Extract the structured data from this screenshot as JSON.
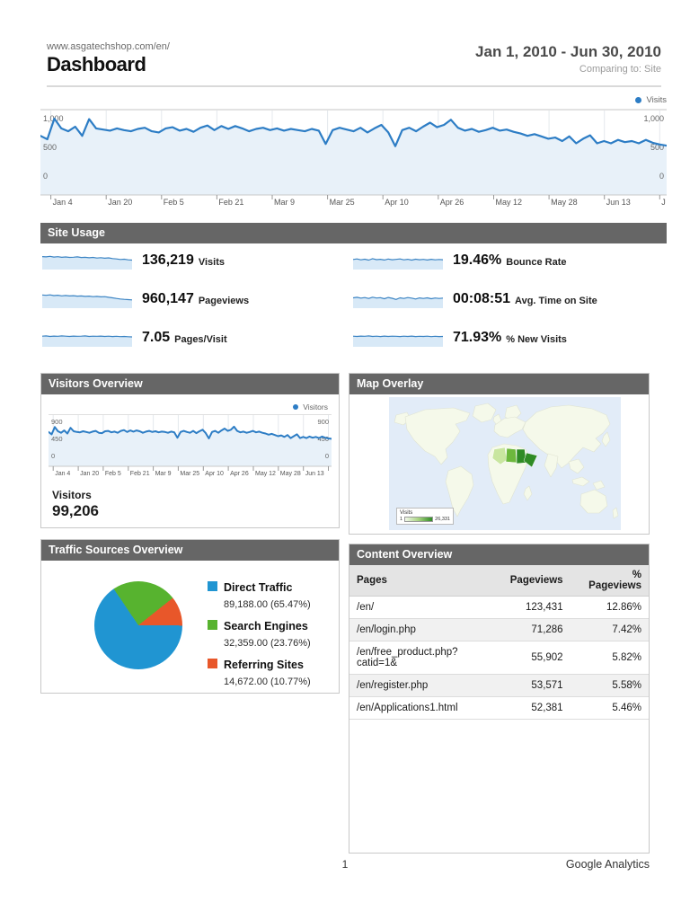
{
  "header": {
    "site_url": "www.asgatechshop.com/en/",
    "title": "Dashboard",
    "date_range": "Jan 1, 2010 - Jun 30, 2010",
    "comparing": "Comparing to: Site"
  },
  "footer": {
    "page_number": "1",
    "brand": "Google Analytics"
  },
  "charts": {
    "main": {
      "type": "line",
      "legend": "Visits",
      "y_ticks": [
        "1,000",
        "500",
        "0"
      ],
      "y_max": 1000,
      "x_labels": [
        "Jan 4",
        "Jan 20",
        "Feb 5",
        "Feb 21",
        "Mar 9",
        "Mar 25",
        "Apr 10",
        "Apr 26",
        "May 12",
        "May 28",
        "Jun 13",
        "J"
      ],
      "values": [
        700,
        640,
        1000,
        830,
        780,
        860,
        700,
        990,
        830,
        810,
        790,
        830,
        800,
        780,
        820,
        840,
        780,
        760,
        830,
        850,
        790,
        820,
        770,
        840,
        880,
        800,
        870,
        820,
        870,
        830,
        780,
        820,
        840,
        800,
        830,
        790,
        820,
        800,
        780,
        820,
        790,
        560,
        800,
        840,
        810,
        780,
        840,
        760,
        830,
        890,
        760,
        520,
        800,
        840,
        780,
        860,
        930,
        850,
        890,
        980,
        840,
        790,
        820,
        770,
        800,
        840,
        790,
        810,
        770,
        740,
        700,
        730,
        690,
        650,
        670,
        610,
        690,
        570,
        650,
        710,
        570,
        610,
        570,
        630,
        590,
        610,
        570,
        630,
        580,
        550,
        530
      ]
    },
    "visitors": {
      "type": "line",
      "legend": "Visitors",
      "y_ticks": [
        "900",
        "450",
        "0"
      ],
      "y_max": 900,
      "x_labels": [
        "Jan 4",
        "Jan 20",
        "Feb 5",
        "Feb 21",
        "Mar 9",
        "Mar 25",
        "Apr 10",
        "Apr 26",
        "May 12",
        "May 28",
        "Jun 13"
      ],
      "values": [
        620,
        560,
        750,
        640,
        600,
        660,
        580,
        730,
        640,
        620,
        610,
        640,
        620,
        600,
        630,
        650,
        600,
        590,
        640,
        650,
        610,
        630,
        600,
        650,
        670,
        620,
        660,
        630,
        660,
        640,
        600,
        630,
        650,
        620,
        640,
        610,
        630,
        620,
        600,
        630,
        610,
        470,
        620,
        650,
        620,
        600,
        650,
        590,
        640,
        680,
        590,
        450,
        620,
        650,
        600,
        660,
        710,
        650,
        680,
        760,
        650,
        610,
        630,
        600,
        620,
        650,
        610,
        630,
        600,
        580,
        550,
        570,
        540,
        510,
        530,
        490,
        540,
        460,
        510,
        560,
        460,
        490,
        460,
        500,
        470,
        490,
        460,
        500,
        470,
        450,
        440
      ]
    }
  },
  "site_usage": {
    "section_title": "Site Usage",
    "metrics": [
      {
        "value": "136,219",
        "label": "Visits",
        "spark": [
          0.8,
          0.78,
          0.82,
          0.76,
          0.79,
          0.74,
          0.77,
          0.73,
          0.75,
          0.78,
          0.72,
          0.74,
          0.7,
          0.73,
          0.68,
          0.71,
          0.66,
          0.69,
          0.63,
          0.6,
          0.55,
          0.58,
          0.52,
          0.5
        ]
      },
      {
        "value": "960,147",
        "label": "Pageviews",
        "spark": [
          0.82,
          0.79,
          0.83,
          0.77,
          0.8,
          0.75,
          0.78,
          0.74,
          0.76,
          0.72,
          0.74,
          0.7,
          0.72,
          0.68,
          0.7,
          0.66,
          0.68,
          0.62,
          0.58,
          0.52,
          0.48,
          0.45,
          0.42,
          0.4
        ]
      },
      {
        "value": "7.05",
        "label": "Pages/Visit",
        "spark": [
          0.6,
          0.62,
          0.58,
          0.61,
          0.59,
          0.62,
          0.6,
          0.58,
          0.61,
          0.59,
          0.6,
          0.62,
          0.58,
          0.6,
          0.59,
          0.61,
          0.58,
          0.6,
          0.57,
          0.59,
          0.56,
          0.58,
          0.55,
          0.54
        ]
      },
      {
        "value": "19.46%",
        "label": "Bounce Rate",
        "spark": [
          0.55,
          0.6,
          0.52,
          0.58,
          0.5,
          0.62,
          0.54,
          0.57,
          0.51,
          0.59,
          0.53,
          0.56,
          0.6,
          0.52,
          0.57,
          0.5,
          0.58,
          0.53,
          0.56,
          0.51,
          0.57,
          0.52,
          0.55,
          0.53
        ]
      },
      {
        "value": "00:08:51",
        "label": "Avg. Time on Site",
        "spark": [
          0.58,
          0.62,
          0.55,
          0.6,
          0.52,
          0.63,
          0.56,
          0.59,
          0.5,
          0.61,
          0.54,
          0.44,
          0.58,
          0.52,
          0.6,
          0.55,
          0.48,
          0.57,
          0.52,
          0.58,
          0.5,
          0.56,
          0.52,
          0.55
        ]
      },
      {
        "value": "71.93%",
        "label": "% New Visits",
        "spark": [
          0.6,
          0.58,
          0.61,
          0.59,
          0.62,
          0.58,
          0.6,
          0.57,
          0.61,
          0.58,
          0.6,
          0.59,
          0.57,
          0.6,
          0.58,
          0.61,
          0.57,
          0.59,
          0.58,
          0.6,
          0.56,
          0.59,
          0.57,
          0.58
        ]
      }
    ]
  },
  "visitors_overview": {
    "panel_title": "Visitors Overview",
    "metric_label": "Visitors",
    "metric_value": "99,206"
  },
  "map_overlay": {
    "panel_title": "Map Overlay",
    "legend_title": "Visits",
    "legend_min": "1",
    "legend_max": "26,331",
    "highlight_colors": [
      "#c9e6a0",
      "#6db83d",
      "#2f8b25"
    ]
  },
  "traffic_sources": {
    "panel_title": "Traffic Sources Overview",
    "chart_type": "pie",
    "slices": [
      {
        "label": "Direct Traffic",
        "value": "89,188.00",
        "percent": "(65.47%)",
        "percent_num": 65.47,
        "color": "#2095d2"
      },
      {
        "label": "Search Engines",
        "value": "32,359.00",
        "percent": "(23.76%)",
        "percent_num": 23.76,
        "color": "#57b32f"
      },
      {
        "label": "Referring Sites",
        "value": "14,672.00",
        "percent": "(10.77%)",
        "percent_num": 10.77,
        "color": "#e8572a"
      }
    ]
  },
  "content_overview": {
    "panel_title": "Content Overview",
    "columns": [
      "Pages",
      "Pageviews",
      "% Pageviews"
    ],
    "rows": [
      {
        "page": "/en/",
        "pageviews": "123,431",
        "pct": "12.86%"
      },
      {
        "page": "/en/login.php",
        "pageviews": "71,286",
        "pct": "7.42%"
      },
      {
        "page": "/en/free_product.php?catid=1&",
        "pageviews": "55,902",
        "pct": "5.82%"
      },
      {
        "page": "/en/register.php",
        "pageviews": "53,571",
        "pct": "5.58%"
      },
      {
        "page": "/en/Applications1.html",
        "pageviews": "52,381",
        "pct": "5.46%"
      }
    ]
  }
}
